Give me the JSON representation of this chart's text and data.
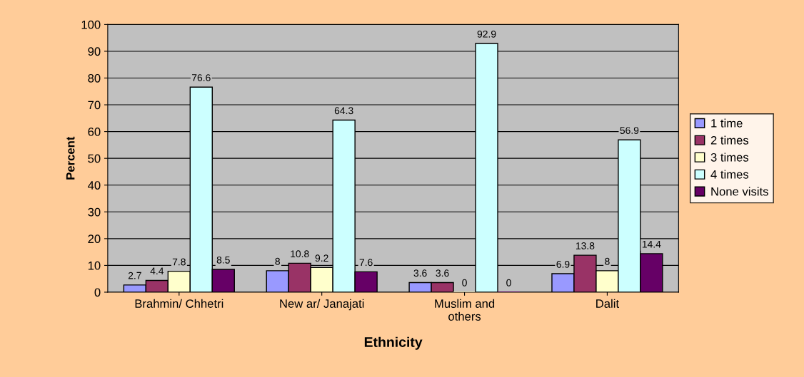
{
  "chart_data": {
    "type": "bar",
    "xlabel": "Ethnicity",
    "ylabel": "Percent",
    "categories": [
      "Brahmin/ Chhetri",
      "New ar/ Janajati",
      "Muslim and\nothers",
      "Dalit"
    ],
    "series": [
      {
        "name": "1 time",
        "color": "#9999ff",
        "values": [
          2.7,
          8,
          3.6,
          6.9
        ]
      },
      {
        "name": "2 times",
        "color": "#993366",
        "values": [
          4.4,
          10.8,
          3.6,
          13.8
        ]
      },
      {
        "name": "3 times",
        "color": "#ffffcc",
        "values": [
          7.8,
          9.2,
          0,
          8
        ]
      },
      {
        "name": "4 times",
        "color": "#ccffff",
        "values": [
          76.6,
          64.3,
          92.9,
          56.9
        ]
      },
      {
        "name": "None visits",
        "color": "#660066",
        "values": [
          8.5,
          7.6,
          0,
          14.4
        ]
      }
    ],
    "ylim": [
      0,
      100
    ],
    "yticks": [
      0,
      10,
      20,
      30,
      40,
      50,
      60,
      70,
      80,
      90,
      100
    ],
    "grid": "y",
    "legend": "right",
    "data_labels": true
  }
}
